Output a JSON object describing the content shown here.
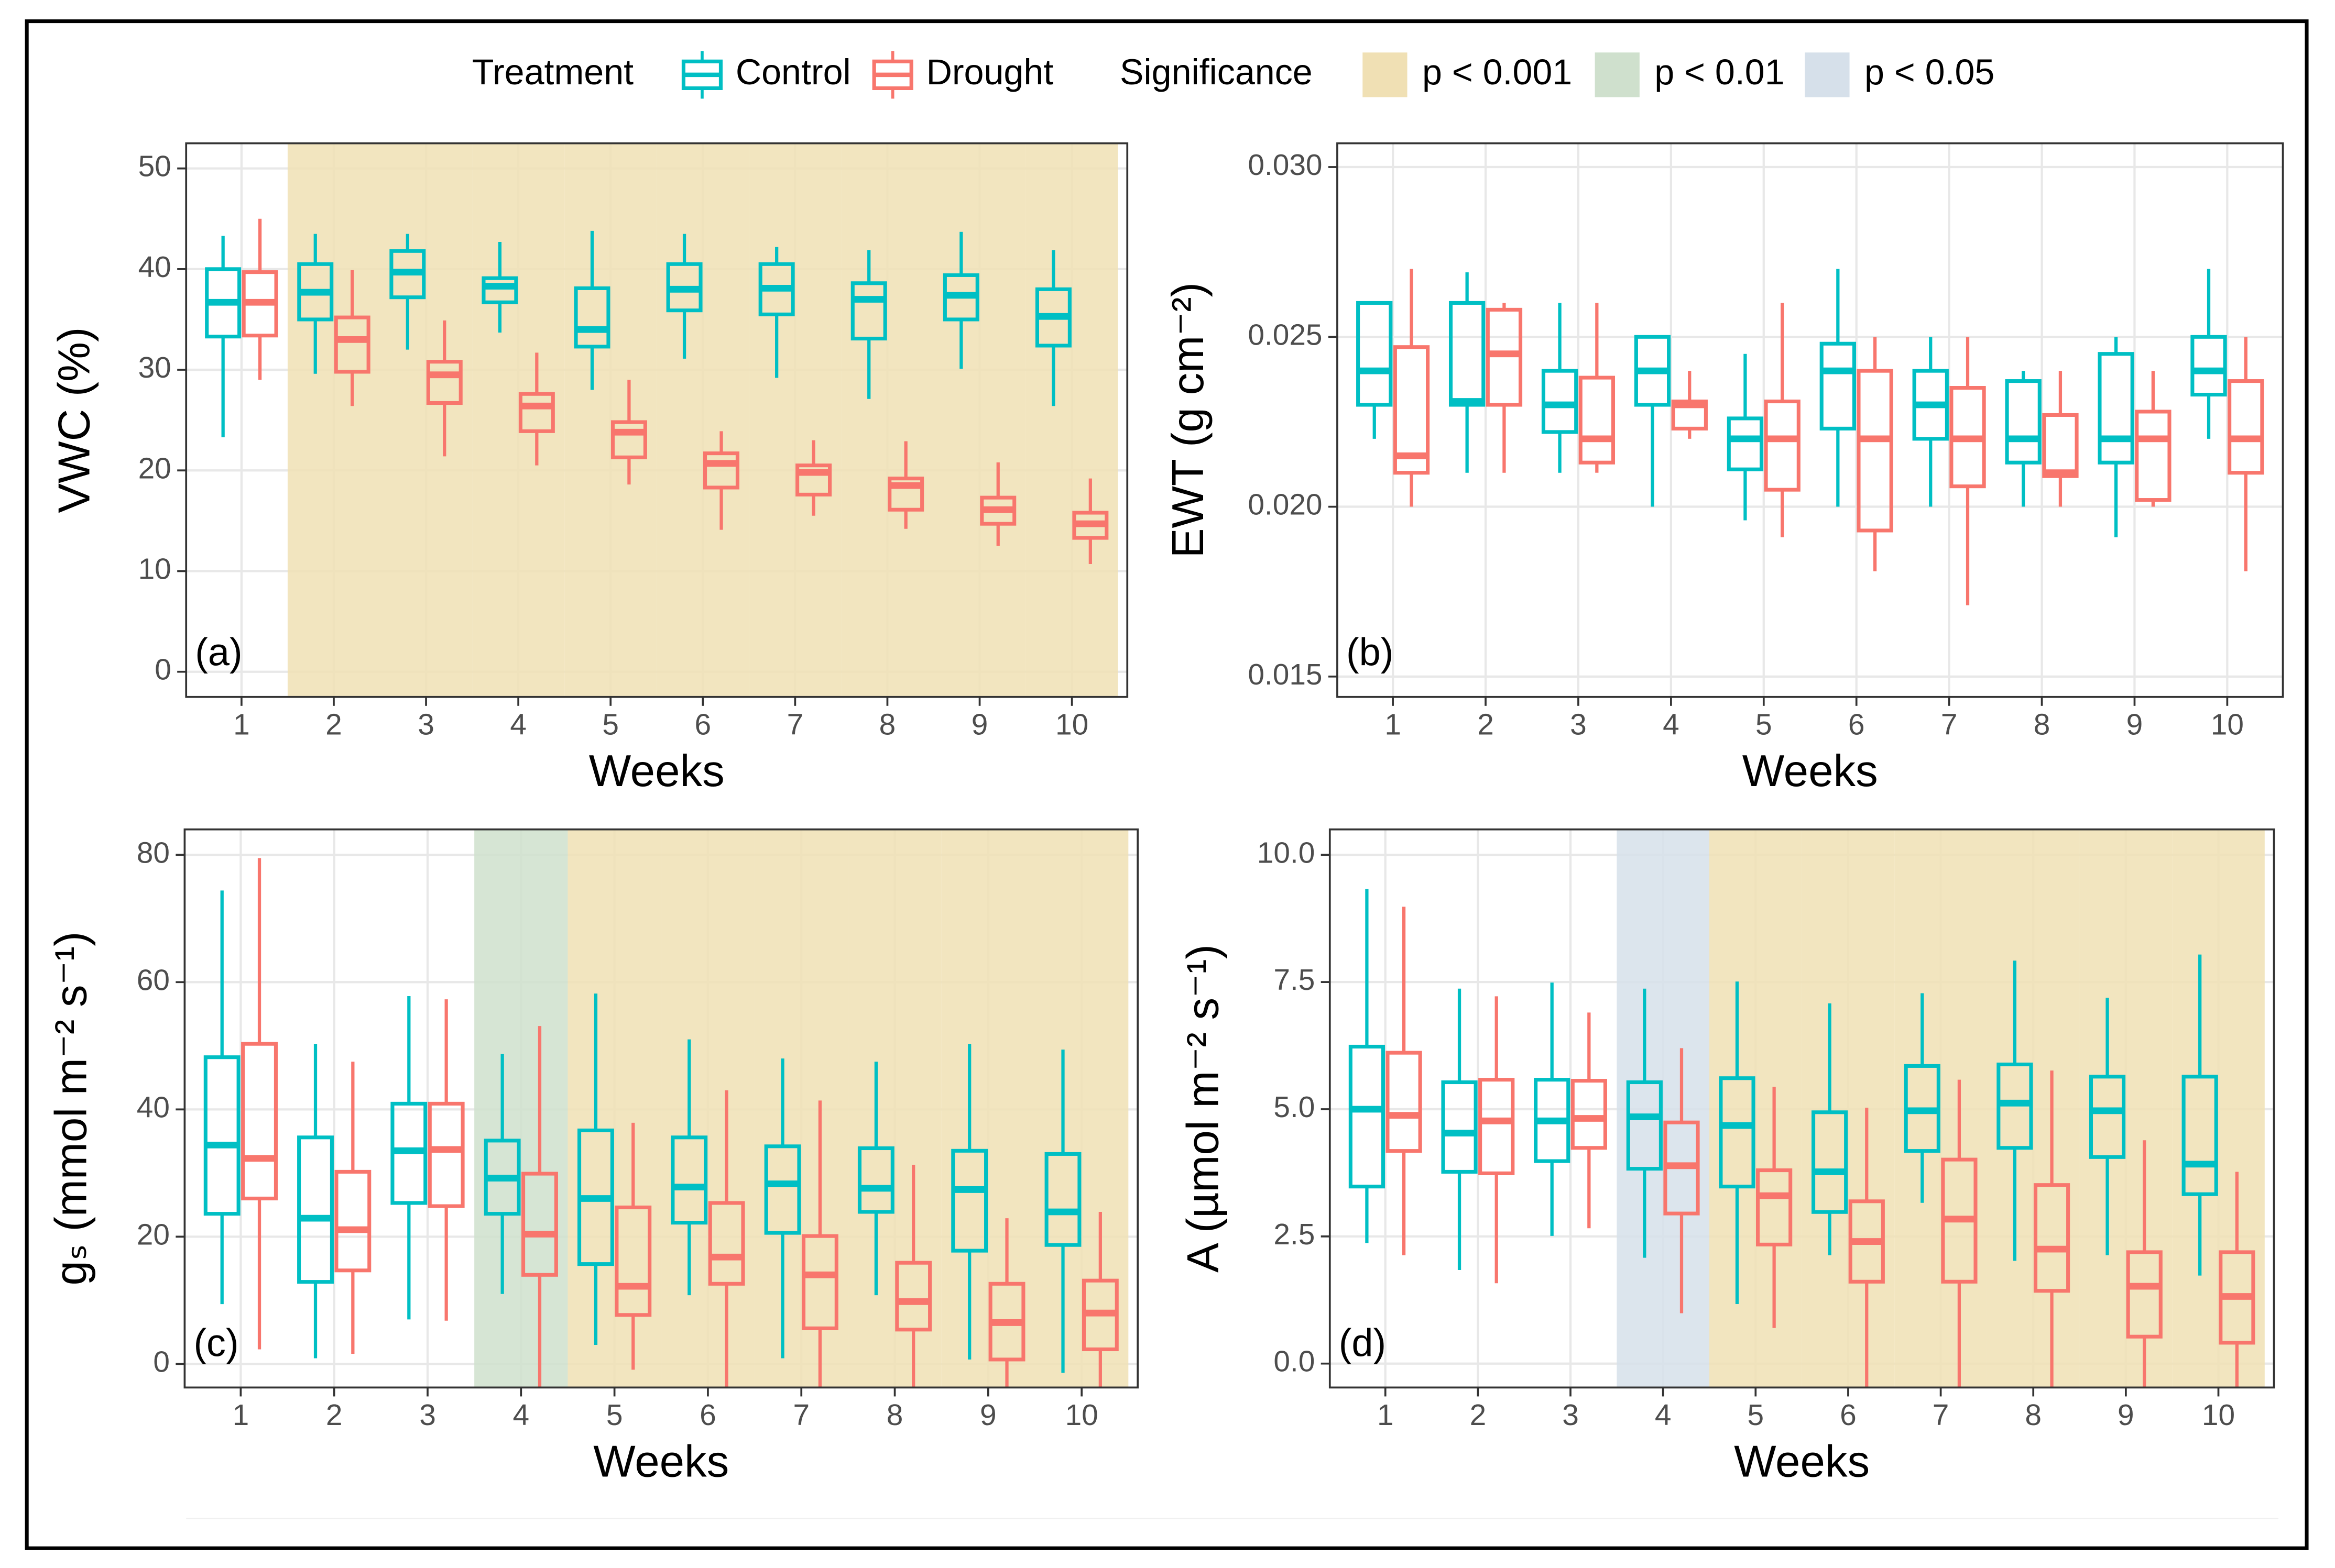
{
  "legend": {
    "title": "Treatment",
    "items": [
      {
        "name": "Control",
        "color": "#00bfc4"
      },
      {
        "name": "Drought",
        "color": "#f8766d"
      }
    ]
  },
  "significance": {
    "title": "Significance",
    "levels": [
      {
        "label": "p < 0.001",
        "color": "#f0e0b4"
      },
      {
        "label": "p < 0.01",
        "color": "#cfe0cd"
      },
      {
        "label": "p < 0.05",
        "color": "#d6e0ea"
      }
    ]
  },
  "chart_data": [
    {
      "type": "box",
      "tag": "(a)",
      "xlabel": "Weeks",
      "ylabel": "VWC (%)",
      "categories": [
        1,
        2,
        3,
        4,
        5,
        6,
        7,
        8,
        9,
        10
      ],
      "ylim": [
        -2.5,
        52.5
      ],
      "yticks": [
        0,
        10,
        20,
        30,
        40,
        50
      ],
      "grid": true,
      "significance": [
        null,
        0,
        0,
        0,
        0,
        0,
        0,
        0,
        0,
        0
      ],
      "series": [
        {
          "whisker_high": [
            43.3,
            43.5,
            43.5,
            42.7,
            43.8,
            43.5,
            42.2,
            41.9,
            43.7,
            41.9
          ],
          "q3": [
            40.0,
            40.5,
            41.8,
            39.1,
            38.1,
            40.5,
            40.5,
            38.6,
            39.4,
            38.0
          ],
          "median": [
            36.7,
            37.7,
            39.7,
            38.3,
            34.0,
            38.0,
            38.1,
            37.0,
            37.4,
            35.3
          ],
          "q1": [
            33.3,
            35.0,
            37.2,
            36.7,
            32.3,
            35.9,
            35.5,
            33.1,
            35.0,
            32.4
          ],
          "whisker_low": [
            23.3,
            29.6,
            32.0,
            33.7,
            28.0,
            31.1,
            29.2,
            27.1,
            30.1,
            26.4
          ]
        },
        {
          "whisker_high": [
            45.0,
            39.9,
            34.9,
            31.7,
            29.0,
            23.9,
            23.0,
            22.9,
            20.8,
            19.2
          ],
          "q3": [
            39.7,
            35.2,
            30.8,
            27.6,
            24.8,
            21.7,
            20.5,
            19.2,
            17.3,
            15.8
          ],
          "median": [
            36.7,
            33.0,
            29.5,
            26.4,
            23.8,
            20.7,
            19.8,
            18.5,
            16.1,
            14.7
          ],
          "q1": [
            33.4,
            29.8,
            26.7,
            23.9,
            21.3,
            18.3,
            17.6,
            16.1,
            14.7,
            13.3
          ],
          "whisker_low": [
            29.0,
            26.4,
            21.4,
            20.5,
            18.6,
            14.1,
            15.5,
            14.2,
            12.5,
            10.7
          ]
        }
      ]
    },
    {
      "type": "box",
      "tag": "(b)",
      "xlabel": "Weeks",
      "ylabel": "EWT (g cm⁻²)",
      "categories": [
        1,
        2,
        3,
        4,
        5,
        6,
        7,
        8,
        9,
        10
      ],
      "ylim": [
        0.0144,
        0.0307
      ],
      "yticks": [
        0.015,
        {
          "value": 0.02,
          "label": "0.020"
        },
        0.025,
        {
          "value": 0.03,
          "label": "0.030"
        }
      ],
      "grid": true,
      "significance": [
        null,
        null,
        null,
        null,
        null,
        null,
        null,
        null,
        null,
        null
      ],
      "series": [
        {
          "whisker_high": [
            0.026,
            0.0269,
            0.026,
            0.025,
            0.0245,
            0.027,
            0.025,
            0.024,
            0.025,
            0.027
          ],
          "q3": [
            0.026,
            0.026,
            0.024,
            0.025,
            0.0226,
            0.0248,
            0.024,
            0.0237,
            0.0245,
            0.025
          ],
          "median": [
            0.024,
            0.0231,
            0.023,
            0.024,
            0.022,
            0.024,
            0.023,
            0.022,
            0.022,
            0.024
          ],
          "q1": [
            0.023,
            0.023,
            0.0222,
            0.023,
            0.0211,
            0.0223,
            0.022,
            0.0213,
            0.0213,
            0.0233
          ],
          "whisker_low": [
            0.022,
            0.021,
            0.021,
            0.02,
            0.0196,
            0.02,
            0.02,
            0.02,
            0.0191,
            0.022
          ]
        },
        {
          "whisker_high": [
            0.027,
            0.026,
            0.026,
            0.024,
            0.026,
            0.025,
            0.025,
            0.024,
            0.024,
            0.025
          ],
          "q3": [
            0.0247,
            0.0258,
            0.0238,
            0.0231,
            0.0231,
            0.024,
            0.0235,
            0.0227,
            0.0228,
            0.0237
          ],
          "median": [
            0.0215,
            0.0245,
            0.022,
            0.023,
            0.022,
            0.022,
            0.022,
            0.021,
            0.022,
            0.022
          ],
          "q1": [
            0.021,
            0.023,
            0.0213,
            0.0223,
            0.0205,
            0.0193,
            0.0206,
            0.0209,
            0.0202,
            0.021
          ],
          "whisker_low": [
            0.02,
            0.021,
            0.021,
            0.022,
            0.0191,
            0.0181,
            0.0171,
            0.02,
            0.02,
            0.0181
          ]
        }
      ]
    },
    {
      "type": "box",
      "tag": "(c)",
      "xlabel": "Weeks",
      "ylabel": "gₛ (mmol m⁻² s⁻¹)",
      "categories": [
        1,
        2,
        3,
        4,
        5,
        6,
        7,
        8,
        9,
        10
      ],
      "ylim": [
        -3.7,
        84
      ],
      "yticks": [
        0,
        20,
        40,
        60,
        80
      ],
      "grid": true,
      "significance": [
        null,
        null,
        null,
        1,
        0,
        0,
        0,
        0,
        0,
        0
      ],
      "series": [
        {
          "whisker_high": [
            74.4,
            50.3,
            57.8,
            48.7,
            58.2,
            51.0,
            48.0,
            47.5,
            50.3,
            49.4
          ],
          "q3": [
            48.2,
            35.6,
            40.9,
            35.1,
            36.7,
            35.6,
            34.2,
            33.9,
            33.5,
            33.0
          ],
          "median": [
            34.4,
            22.9,
            33.5,
            29.2,
            26.0,
            27.8,
            28.3,
            27.6,
            27.4,
            23.9
          ],
          "q1": [
            23.6,
            12.9,
            25.3,
            23.6,
            15.7,
            22.2,
            20.6,
            23.9,
            17.8,
            18.7
          ],
          "whisker_low": [
            9.4,
            0.9,
            7.0,
            11.0,
            3.0,
            10.8,
            0.9,
            10.8,
            0.7,
            -1.4
          ]
        },
        {
          "whisker_high": [
            79.5,
            47.5,
            57.3,
            53.1,
            37.9,
            43.0,
            41.4,
            31.3,
            22.9,
            23.9
          ],
          "q3": [
            50.3,
            30.2,
            40.9,
            29.9,
            24.6,
            25.3,
            20.1,
            15.9,
            12.6,
            13.1
          ],
          "median": [
            32.3,
            21.1,
            33.7,
            20.4,
            12.2,
            16.8,
            14.0,
            9.8,
            6.5,
            8.0
          ],
          "q1": [
            26.0,
            14.7,
            24.8,
            14.0,
            7.7,
            12.6,
            5.6,
            5.4,
            0.7,
            2.3
          ],
          "whisker_low": [
            2.3,
            1.6,
            6.8,
            -4,
            -0.9,
            -4,
            -4,
            -4,
            -4,
            -4
          ]
        }
      ]
    },
    {
      "type": "box",
      "tag": "(d)",
      "xlabel": "Weeks",
      "ylabel": "A (µmol m⁻² s⁻¹)",
      "categories": [
        1,
        2,
        3,
        4,
        5,
        6,
        7,
        8,
        9,
        10
      ],
      "ylim": [
        -0.47,
        10.5
      ],
      "yticks": [
        {
          "value": 0,
          "label": "0.0"
        },
        2.5,
        {
          "value": 5,
          "label": "5.0"
        },
        7.5,
        {
          "value": 10,
          "label": "10.0"
        }
      ],
      "grid": true,
      "significance": [
        null,
        null,
        null,
        2,
        0,
        0,
        0,
        0,
        0,
        0
      ],
      "series": [
        {
          "whisker_high": [
            9.33,
            7.37,
            7.49,
            7.37,
            7.51,
            7.08,
            7.28,
            7.92,
            7.19,
            8.04
          ],
          "q3": [
            6.23,
            5.53,
            5.58,
            5.53,
            5.61,
            4.94,
            5.85,
            5.88,
            5.64,
            5.64
          ],
          "median": [
            5.0,
            4.53,
            4.77,
            4.85,
            4.68,
            3.77,
            4.97,
            5.12,
            4.97,
            3.92
          ],
          "q1": [
            3.48,
            3.77,
            3.98,
            3.83,
            3.48,
            2.98,
            4.18,
            4.24,
            4.06,
            3.33
          ],
          "whisker_low": [
            2.37,
            1.84,
            2.51,
            2.08,
            1.17,
            2.13,
            3.16,
            2.02,
            2.13,
            1.73
          ]
        },
        {
          "whisker_high": [
            8.98,
            7.22,
            6.9,
            6.2,
            5.44,
            5.03,
            5.58,
            5.76,
            4.39,
            3.77
          ],
          "q3": [
            6.11,
            5.58,
            5.56,
            4.74,
            3.8,
            3.19,
            4.01,
            3.51,
            2.19,
            2.19
          ],
          "median": [
            4.88,
            4.77,
            4.82,
            3.89,
            3.3,
            2.4,
            2.84,
            2.25,
            1.52,
            1.32
          ],
          "q1": [
            4.18,
            3.74,
            4.24,
            2.95,
            2.34,
            1.61,
            1.61,
            1.43,
            0.53,
            0.41
          ],
          "whisker_low": [
            2.13,
            1.58,
            2.66,
            0.99,
            0.7,
            -0.6,
            -0.6,
            -0.6,
            -0.6,
            -0.6
          ]
        }
      ]
    }
  ]
}
